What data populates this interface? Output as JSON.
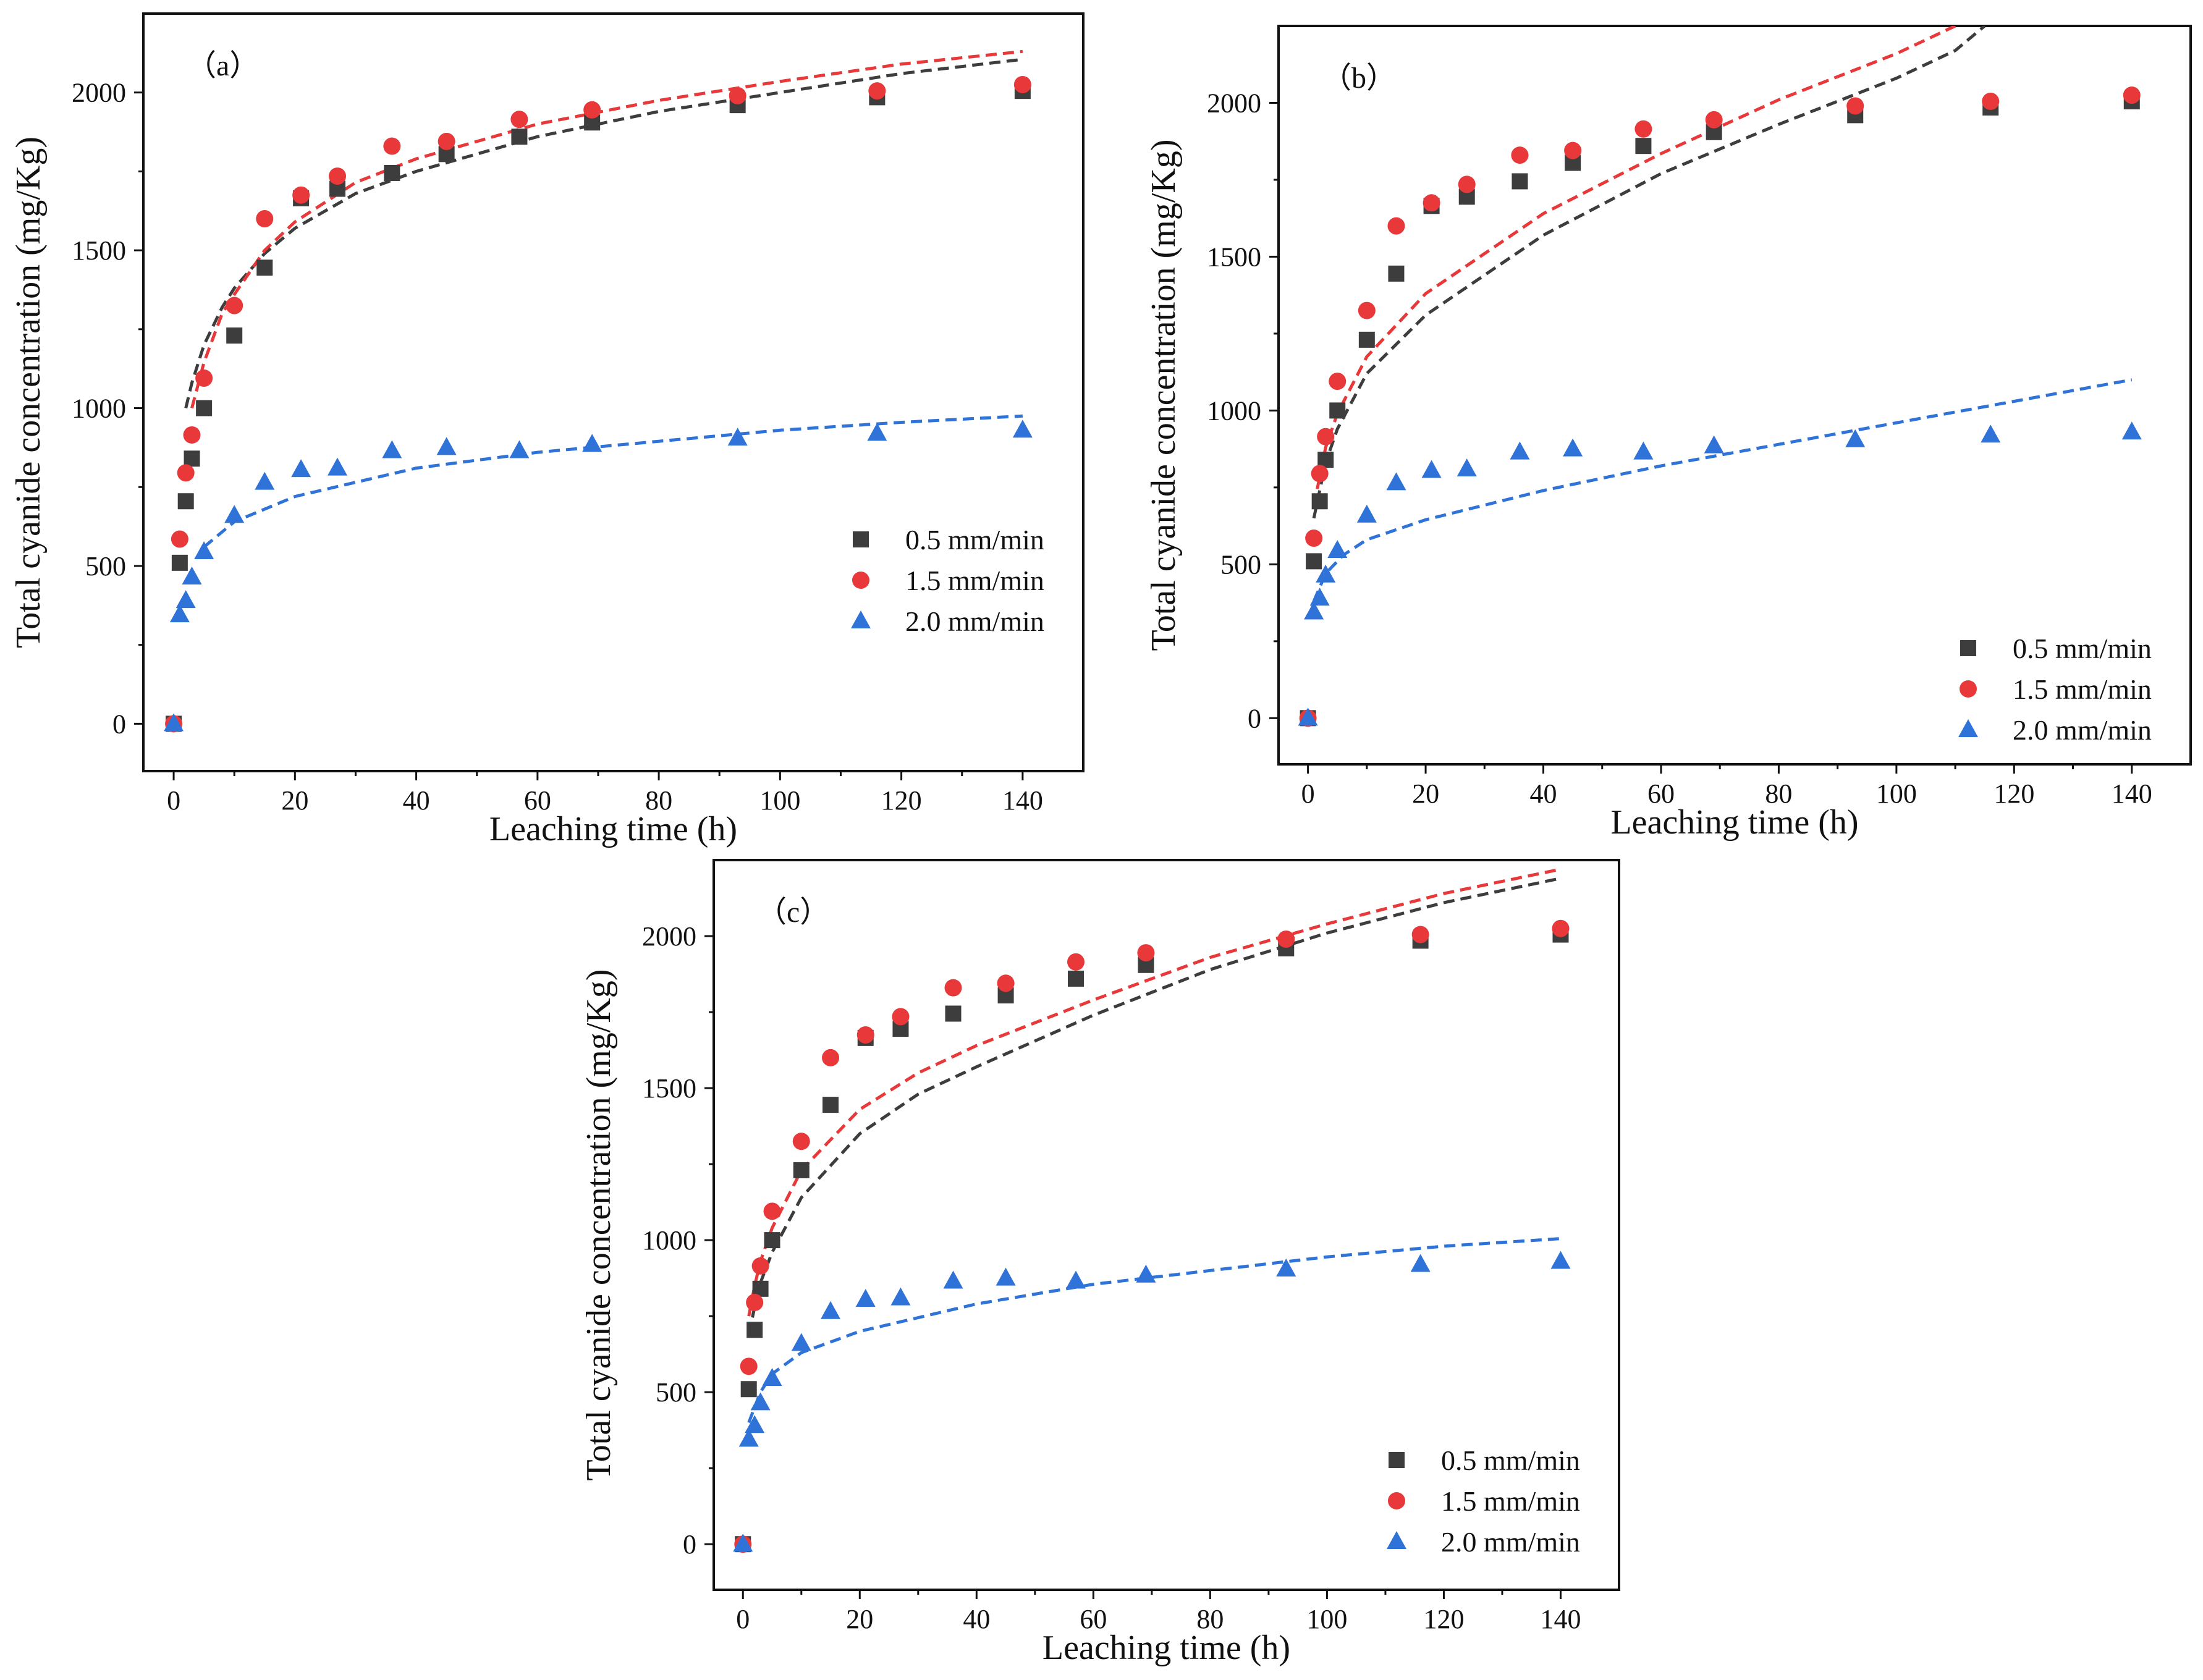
{
  "figure": {
    "colors": {
      "series_0_5": "#3d3d3d",
      "series_1_5": "#e8383a",
      "series_2_0": "#2f73d8",
      "axes": "#111111"
    }
  },
  "chart_data": [
    {
      "type": "scatter",
      "panel_label": "（a）",
      "xlabel": "Leaching time (h)",
      "ylabel": "Total cyanide concentration (mg/Kg)",
      "xlim": [
        -5,
        150
      ],
      "ylim": [
        -150,
        2250
      ],
      "xticks": [
        0,
        20,
        40,
        60,
        80,
        100,
        120,
        140
      ],
      "yticks": [
        0,
        500,
        1000,
        1500,
        2000
      ],
      "legend_position": "bottom-right",
      "x": [
        0,
        1,
        2,
        3,
        5,
        10,
        15,
        21,
        27,
        36,
        45,
        57,
        69,
        93,
        116,
        140
      ],
      "series": [
        {
          "name": "0.5 mm/min",
          "marker": "square",
          "color_key": "series_0_5",
          "values": [
            0,
            510,
            705,
            840,
            1000,
            1230,
            1445,
            1665,
            1695,
            1745,
            1805,
            1860,
            1905,
            1960,
            1985,
            2005
          ],
          "fit_x": [
            2,
            3,
            5,
            8,
            10,
            15,
            20,
            30,
            40,
            60,
            80,
            100,
            120,
            140
          ],
          "fit_y": [
            1000,
            1080,
            1200,
            1320,
            1380,
            1490,
            1570,
            1680,
            1750,
            1860,
            1940,
            2000,
            2060,
            2105
          ]
        },
        {
          "name": "1.5 mm/min",
          "marker": "circle",
          "color_key": "series_1_5",
          "values": [
            0,
            585,
            795,
            915,
            1095,
            1325,
            1600,
            1675,
            1735,
            1830,
            1845,
            1915,
            1945,
            1990,
            2005,
            2025
          ],
          "fit_x": [
            3,
            5,
            8,
            10,
            15,
            20,
            30,
            40,
            60,
            80,
            100,
            120,
            140
          ],
          "fit_y": [
            1000,
            1145,
            1300,
            1360,
            1500,
            1590,
            1715,
            1790,
            1900,
            1975,
            2035,
            2090,
            2130
          ]
        },
        {
          "name": "2.0 mm/min",
          "marker": "triangle",
          "color_key": "series_2_0",
          "values": [
            0,
            345,
            390,
            465,
            545,
            660,
            765,
            805,
            810,
            865,
            875,
            865,
            885,
            905,
            920,
            930
          ],
          "fit_x": [
            5,
            10,
            20,
            40,
            60,
            80,
            100,
            120,
            140
          ],
          "fit_y": [
            560,
            640,
            720,
            810,
            860,
            895,
            930,
            955,
            975
          ]
        }
      ]
    },
    {
      "type": "scatter",
      "panel_label": "（b）",
      "xlabel": "Leaching time (h)",
      "ylabel": "Total cyanide concentration (mg/Kg)",
      "xlim": [
        -5,
        150
      ],
      "ylim": [
        -150,
        2250
      ],
      "xticks": [
        0,
        20,
        40,
        60,
        80,
        100,
        120,
        140
      ],
      "yticks": [
        0,
        500,
        1000,
        1500,
        2000
      ],
      "legend_position": "bottom-right",
      "x": [
        0,
        1,
        2,
        3,
        5,
        10,
        15,
        21,
        27,
        36,
        45,
        57,
        69,
        93,
        116,
        140
      ],
      "series": [
        {
          "name": "0.5 mm/min",
          "marker": "square",
          "color_key": "series_0_5",
          "values": [
            0,
            510,
            705,
            840,
            1000,
            1230,
            1445,
            1665,
            1695,
            1745,
            1805,
            1860,
            1905,
            1960,
            1985,
            2005
          ],
          "fit_x": [
            1,
            3,
            5,
            10,
            20,
            40,
            60,
            80,
            100,
            110,
            115
          ],
          "fit_y": [
            650,
            830,
            940,
            1120,
            1310,
            1570,
            1770,
            1930,
            2080,
            2170,
            2250
          ]
        },
        {
          "name": "1.5 mm/min",
          "marker": "circle",
          "color_key": "series_1_5",
          "values": [
            0,
            585,
            795,
            915,
            1095,
            1325,
            1600,
            1675,
            1735,
            1830,
            1845,
            1915,
            1945,
            1990,
            2005,
            2025
          ],
          "fit_x": [
            1,
            3,
            5,
            10,
            20,
            40,
            60,
            80,
            100,
            110
          ],
          "fit_y": [
            690,
            880,
            990,
            1175,
            1380,
            1640,
            1835,
            2010,
            2160,
            2250
          ]
        },
        {
          "name": "2.0 mm/min",
          "marker": "triangle",
          "color_key": "series_2_0",
          "values": [
            0,
            345,
            390,
            465,
            545,
            660,
            765,
            805,
            810,
            865,
            875,
            865,
            885,
            905,
            920,
            930
          ],
          "fit_x": [
            1,
            3,
            6,
            10,
            20,
            40,
            60,
            80,
            100,
            120,
            140
          ],
          "fit_y": [
            380,
            470,
            530,
            580,
            645,
            740,
            820,
            890,
            960,
            1030,
            1100
          ]
        }
      ]
    },
    {
      "type": "scatter",
      "panel_label": "（c）",
      "xlabel": "Leaching time (h)",
      "ylabel": "Total cyanide concentration (mg/Kg)",
      "xlim": [
        -5,
        150
      ],
      "ylim": [
        -150,
        2250
      ],
      "xticks": [
        0,
        20,
        40,
        60,
        80,
        100,
        120,
        140
      ],
      "yticks": [
        0,
        500,
        1000,
        1500,
        2000
      ],
      "legend_position": "bottom-right",
      "x": [
        0,
        1,
        2,
        3,
        5,
        10,
        15,
        21,
        27,
        36,
        45,
        57,
        69,
        93,
        116,
        140
      ],
      "series": [
        {
          "name": "0.5 mm/min",
          "marker": "square",
          "color_key": "series_0_5",
          "values": [
            0,
            510,
            705,
            840,
            1000,
            1230,
            1445,
            1665,
            1695,
            1745,
            1805,
            1860,
            1905,
            1960,
            1985,
            2005
          ],
          "fit_x": [
            1,
            2,
            3,
            5,
            10,
            20,
            30,
            40,
            60,
            80,
            100,
            120,
            140
          ],
          "fit_y": [
            690,
            780,
            860,
            960,
            1140,
            1350,
            1480,
            1570,
            1740,
            1890,
            2010,
            2110,
            2190
          ]
        },
        {
          "name": "1.5 mm/min",
          "marker": "circle",
          "color_key": "series_1_5",
          "values": [
            0,
            585,
            795,
            915,
            1095,
            1325,
            1600,
            1675,
            1735,
            1830,
            1845,
            1915,
            1945,
            1990,
            2005,
            2025
          ],
          "fit_x": [
            1,
            2,
            3,
            5,
            10,
            20,
            30,
            40,
            60,
            80,
            100,
            120,
            140
          ],
          "fit_y": [
            750,
            850,
            930,
            1040,
            1230,
            1430,
            1550,
            1640,
            1790,
            1930,
            2040,
            2140,
            2220
          ]
        },
        {
          "name": "2.0 mm/min",
          "marker": "triangle",
          "color_key": "series_2_0",
          "values": [
            0,
            345,
            390,
            465,
            545,
            660,
            765,
            805,
            810,
            865,
            875,
            865,
            885,
            905,
            920,
            930
          ],
          "fit_x": [
            1,
            3,
            5,
            10,
            20,
            40,
            60,
            80,
            100,
            120,
            140
          ],
          "fit_y": [
            400,
            500,
            560,
            630,
            700,
            790,
            855,
            900,
            945,
            980,
            1005
          ]
        }
      ]
    }
  ]
}
